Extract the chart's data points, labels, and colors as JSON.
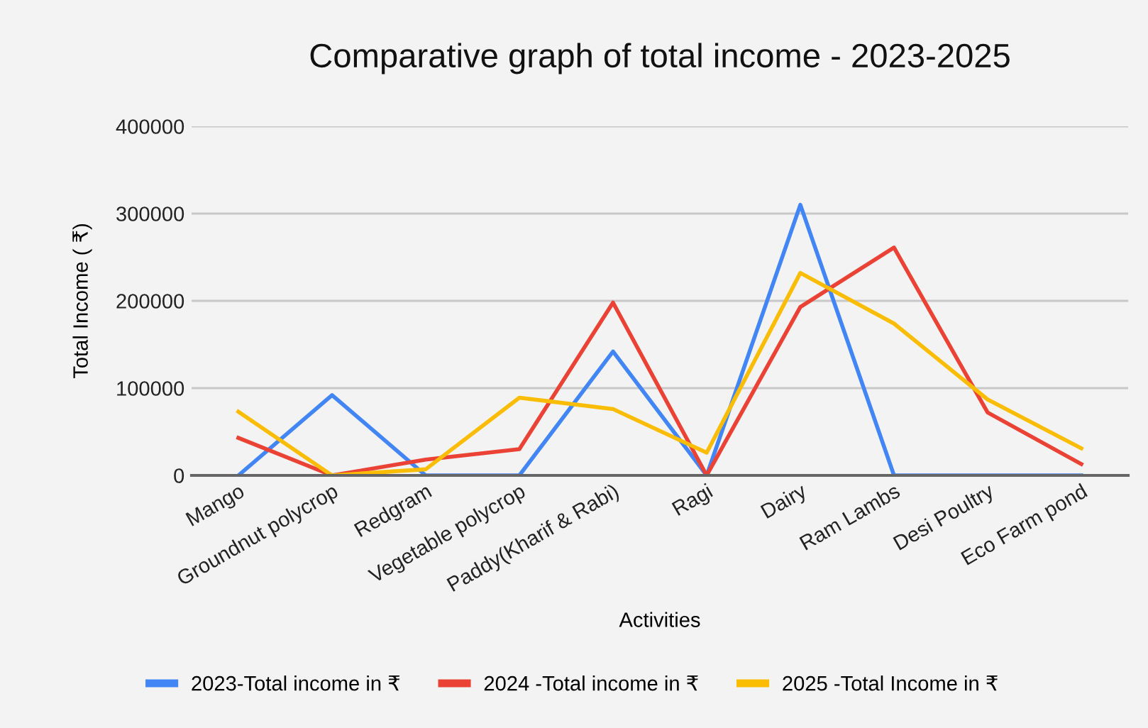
{
  "chart_data": {
    "type": "line",
    "title": "Comparative graph of total income - 2023-2025",
    "xlabel": "Activities",
    "ylabel": "Total Income ( ₹)",
    "categories": [
      "Mango",
      "Groundnut polycrop",
      "Redgram",
      "Vegetable polycrop",
      "Paddy(Kharif & Rabi)",
      "Ragi",
      "Dairy",
      "Ram Lambs",
      "Desi Poultry",
      "Eco Farm pond"
    ],
    "series": [
      {
        "name": "2023-Total income in ₹",
        "color": "#4285f4",
        "values": [
          0,
          92000,
          0,
          0,
          142000,
          0,
          310000,
          0,
          0,
          0
        ]
      },
      {
        "name": "2024 -Total income in ₹",
        "color": "#ea4335",
        "values": [
          43000,
          0,
          18000,
          30000,
          198000,
          0,
          193000,
          261000,
          72000,
          13000
        ]
      },
      {
        "name": "2025 -Total Income in ₹",
        "color": "#fbbc04",
        "values": [
          73000,
          0,
          7000,
          89000,
          76000,
          26000,
          232000,
          174000,
          87000,
          31000
        ]
      }
    ],
    "ylim": [
      0,
      400000
    ],
    "yticks": [
      0,
      100000,
      200000,
      300000,
      400000
    ],
    "grid": "y",
    "legend": "bottom",
    "marker": "none",
    "line_style": "solid"
  }
}
